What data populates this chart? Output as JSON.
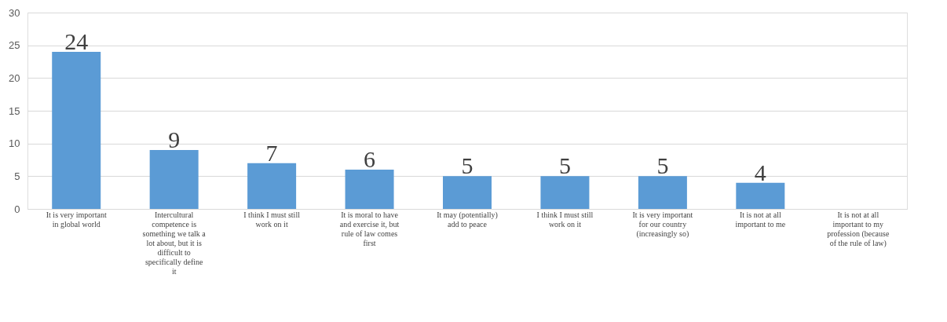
{
  "chart_data": {
    "type": "bar",
    "categories": [
      "It is very important in global world",
      "Intercultural competence is something we talk a lot about, but it is difficult to specifically define it",
      "I think I must still work on it",
      "It is moral to have and exercise it, but rule of law comes first",
      "It may (potentially) add to peace",
      "I think I must still work on it",
      "It is very important for our country (increasingly so)",
      "It is not at all important to me",
      "It is not  at all important to my profession (because of the rule of law)"
    ],
    "values": [
      24,
      9,
      7,
      6,
      5,
      5,
      5,
      4,
      null
    ],
    "color": "#5b9bd5",
    "ylim": [
      0,
      30
    ],
    "yticks": [
      0,
      5,
      10,
      15,
      20,
      25,
      30
    ],
    "grid": "y",
    "data_labels": true
  }
}
